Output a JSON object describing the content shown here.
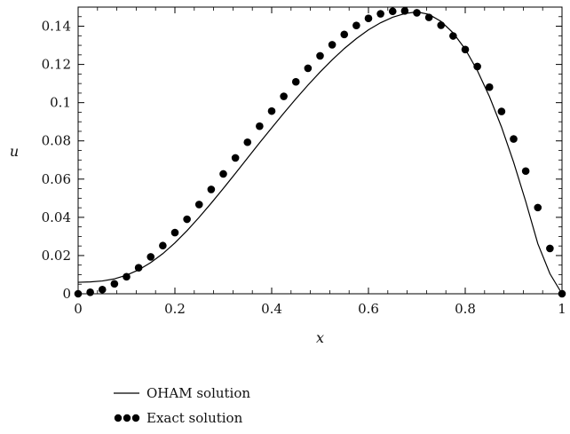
{
  "chart_data": {
    "type": "line",
    "title": "",
    "xlabel": "x",
    "ylabel": "u",
    "xlim": [
      0,
      1
    ],
    "ylim": [
      0,
      0.15
    ],
    "x_ticks": [
      0,
      0.2,
      0.4,
      0.6,
      0.8,
      1
    ],
    "x_tick_labels": [
      "0",
      "0.2",
      "0.4",
      "0.6",
      "0.8",
      "1"
    ],
    "y_ticks": [
      0,
      0.02,
      0.04,
      0.06,
      0.08,
      0.1,
      0.12,
      0.14
    ],
    "y_tick_labels": [
      "0",
      "0.02",
      "0.04",
      "0.06",
      "0.08",
      "0.1",
      "0.12",
      "0.14"
    ],
    "grid": false,
    "legend_position": "bottom-left",
    "series": [
      {
        "name": "OHAM solution",
        "style": "line",
        "color": "#000000",
        "x": [
          0,
          0.025,
          0.05,
          0.075,
          0.1,
          0.125,
          0.15,
          0.175,
          0.2,
          0.225,
          0.25,
          0.275,
          0.3,
          0.325,
          0.35,
          0.375,
          0.4,
          0.425,
          0.45,
          0.475,
          0.5,
          0.525,
          0.55,
          0.575,
          0.6,
          0.625,
          0.65,
          0.675,
          0.7,
          0.725,
          0.75,
          0.775,
          0.8,
          0.825,
          0.85,
          0.875,
          0.9,
          0.925,
          0.95,
          0.975,
          1.0
        ],
        "y": [
          0.006,
          0.0062,
          0.0067,
          0.0078,
          0.0097,
          0.0125,
          0.0163,
          0.021,
          0.0266,
          0.033,
          0.04,
          0.0474,
          0.0551,
          0.063,
          0.071,
          0.079,
          0.0868,
          0.0945,
          0.102,
          0.1092,
          0.116,
          0.1224,
          0.1283,
          0.1335,
          0.1381,
          0.1418,
          0.1447,
          0.1466,
          0.1475,
          0.1462,
          0.1425,
          0.1365,
          0.128,
          0.1168,
          0.1032,
          0.0872,
          0.0688,
          0.0483,
          0.0262,
          0.0105,
          0.0
        ]
      },
      {
        "name": "Exact solution",
        "style": "markers",
        "color": "#000000",
        "x": [
          0,
          0.025,
          0.05,
          0.075,
          0.1,
          0.125,
          0.15,
          0.175,
          0.2,
          0.225,
          0.25,
          0.275,
          0.3,
          0.325,
          0.35,
          0.375,
          0.4,
          0.425,
          0.45,
          0.475,
          0.5,
          0.525,
          0.55,
          0.575,
          0.6,
          0.625,
          0.65,
          0.675,
          0.7,
          0.725,
          0.75,
          0.775,
          0.8,
          0.825,
          0.85,
          0.875,
          0.9,
          0.925,
          0.95,
          0.975,
          1.0
        ],
        "y": [
          0.0,
          0.0008,
          0.0022,
          0.0052,
          0.0089,
          0.0136,
          0.0193,
          0.0252,
          0.032,
          0.039,
          0.0467,
          0.0546,
          0.0627,
          0.0711,
          0.0793,
          0.0877,
          0.0956,
          0.1033,
          0.1109,
          0.118,
          0.1245,
          0.1303,
          0.1357,
          0.1404,
          0.1441,
          0.1465,
          0.1478,
          0.148,
          0.147,
          0.1446,
          0.1405,
          0.1349,
          0.1278,
          0.1189,
          0.1081,
          0.0954,
          0.081,
          0.0642,
          0.0451,
          0.0237,
          0.0
        ]
      }
    ]
  }
}
